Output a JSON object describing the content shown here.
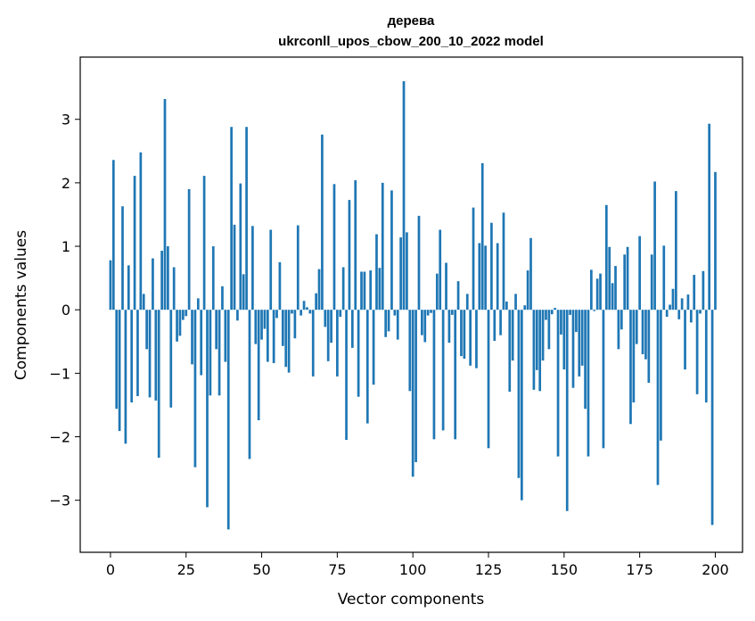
{
  "chart_data": {
    "type": "bar",
    "title": "дерева",
    "subtitle": "ukrconll_upos_cbow_200_10_2022 model",
    "xlabel": "Vector components",
    "ylabel": "Components values",
    "xlim": [
      -10,
      209
    ],
    "ylim": [
      -3.82,
      3.98
    ],
    "x_ticks": [
      0,
      25,
      50,
      75,
      100,
      125,
      150,
      175,
      200
    ],
    "x_tick_labels": [
      "0",
      "25",
      "50",
      "75",
      "100",
      "125",
      "150",
      "175",
      "200"
    ],
    "y_ticks": [
      -3,
      -2,
      -1,
      0,
      1,
      2,
      3
    ],
    "y_tick_labels": [
      "−3",
      "−2",
      "−1",
      "0",
      "1",
      "2",
      "3"
    ],
    "bar_color": "#1f77b4",
    "grid": false,
    "values": [
      0.78,
      2.36,
      -1.56,
      -1.91,
      1.63,
      -2.11,
      0.7,
      -1.46,
      2.11,
      -1.36,
      2.48,
      0.25,
      -0.62,
      -1.38,
      0.81,
      -1.43,
      -2.33,
      0.93,
      3.32,
      1.0,
      -1.54,
      0.67,
      -0.5,
      -0.41,
      -0.16,
      -0.1,
      1.9,
      -0.86,
      -2.48,
      0.18,
      -1.03,
      2.11,
      -3.11,
      -1.35,
      1.0,
      -0.62,
      -1.35,
      0.37,
      -0.82,
      -3.46,
      2.88,
      1.34,
      -0.17,
      1.99,
      0.56,
      2.88,
      -2.35,
      1.32,
      -0.54,
      -1.74,
      -0.47,
      -0.3,
      -0.82,
      1.26,
      -0.84,
      -0.13,
      0.75,
      -0.57,
      -0.9,
      -0.99,
      -0.06,
      -0.45,
      1.33,
      -0.09,
      0.14,
      0.04,
      -0.06,
      -1.05,
      0.26,
      0.64,
      2.76,
      -0.27,
      -0.81,
      -0.52,
      1.98,
      -1.05,
      -0.11,
      0.67,
      -2.05,
      1.73,
      -0.6,
      2.04,
      -1.37,
      0.6,
      0.6,
      -1.79,
      0.62,
      -1.18,
      1.19,
      0.66,
      2.0,
      -0.43,
      -0.34,
      1.88,
      -0.09,
      -0.47,
      1.14,
      3.6,
      1.22,
      -1.28,
      -2.63,
      -2.4,
      1.48,
      -0.4,
      -0.51,
      -0.09,
      -0.05,
      -2.04,
      0.57,
      1.26,
      -1.9,
      0.74,
      -0.52,
      -0.08,
      -2.04,
      0.45,
      -0.73,
      -0.77,
      0.25,
      -0.88,
      1.61,
      -0.92,
      1.05,
      2.31,
      1.01,
      -2.18,
      1.37,
      -0.49,
      1.05,
      -0.4,
      1.53,
      0.13,
      -1.29,
      -0.8,
      0.25,
      -2.65,
      -3.0,
      0.07,
      0.62,
      1.13,
      -1.26,
      -0.95,
      -1.28,
      -0.8,
      -0.16,
      -0.62,
      -0.07,
      0.03,
      -2.31,
      -0.39,
      -0.94,
      -3.17,
      -0.08,
      -1.23,
      -0.35,
      -1.05,
      -0.88,
      -1.56,
      -2.31,
      0.63,
      -0.02,
      0.49,
      0.57,
      -2.18,
      1.65,
      0.99,
      0.42,
      0.69,
      -0.62,
      -0.31,
      0.87,
      0.99,
      -1.8,
      -1.46,
      -0.54,
      1.16,
      -0.7,
      -0.78,
      -1.15,
      0.87,
      2.02,
      -2.76,
      -2.06,
      1.01,
      -0.11,
      0.08,
      0.33,
      1.87,
      -0.15,
      0.18,
      -0.94,
      0.24,
      -0.2,
      0.55,
      -1.33,
      -0.06,
      0.61,
      -1.46,
      2.93,
      -3.39,
      2.17
    ]
  }
}
